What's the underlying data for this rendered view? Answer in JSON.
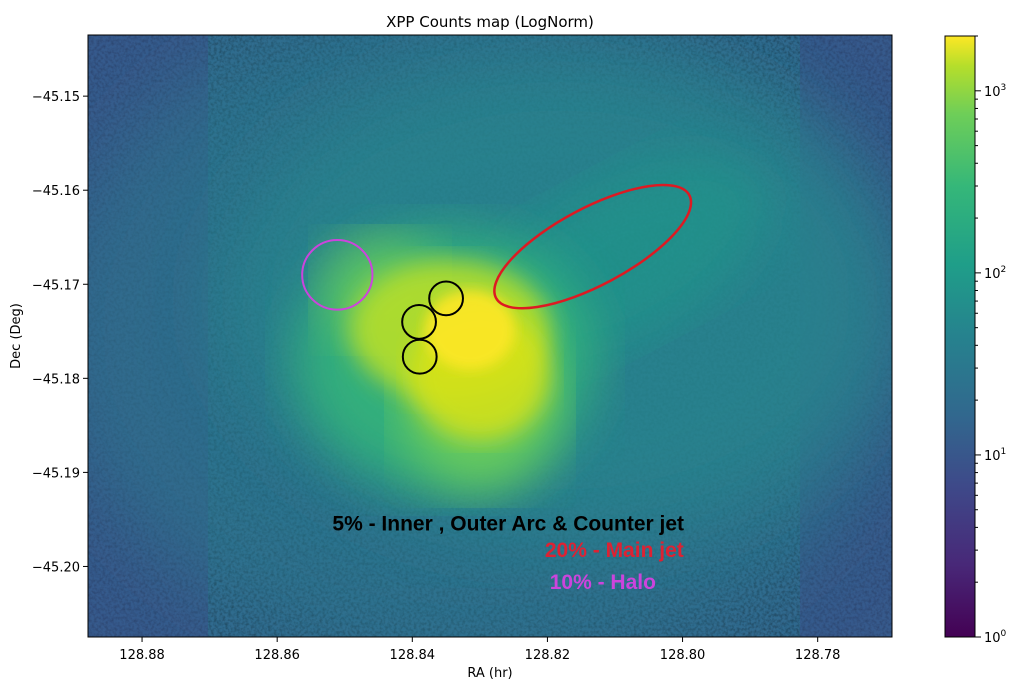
{
  "chart_data": {
    "type": "heatmap",
    "title": "XPP Counts map (LogNorm)",
    "xlabel": "RA (hr)",
    "ylabel": "Dec (Deg)",
    "xlim": [
      128.888,
      128.769
    ],
    "ylim": [
      -45.2075,
      -45.1435
    ],
    "x_ticks": [
      128.88,
      128.86,
      128.84,
      128.82,
      128.8,
      128.78
    ],
    "x_tick_labels": [
      "128.88",
      "128.86",
      "128.84",
      "128.82",
      "128.80",
      "128.78"
    ],
    "y_ticks": [
      -45.15,
      -45.16,
      -45.17,
      -45.18,
      -45.19,
      -45.2
    ],
    "y_tick_labels": [
      "−45.15",
      "−45.16",
      "−45.17",
      "−45.18",
      "−45.19",
      "−45.20"
    ],
    "colorbar": {
      "scale": "log",
      "range": [
        1,
        2000
      ],
      "colormap": "viridis",
      "ticks": [
        {
          "value": 1,
          "base": "10",
          "exp": "0"
        },
        {
          "value": 10,
          "base": "10",
          "exp": "1"
        },
        {
          "value": 100,
          "base": "10",
          "exp": "2"
        },
        {
          "value": 1000,
          "base": "10",
          "exp": "3"
        }
      ]
    },
    "regions": [
      {
        "name": "halo",
        "shape": "circle",
        "ra": 128.8511,
        "dec": -45.169,
        "r_ra": 0.0052,
        "r_dec": 0.0037,
        "color": "#cc44dd"
      },
      {
        "name": "outer-arc",
        "shape": "circle",
        "ra": 128.835,
        "dec": -45.1715,
        "r_ra": 0.0025,
        "r_dec": 0.0018,
        "color": "#000000"
      },
      {
        "name": "inner",
        "shape": "circle",
        "ra": 128.839,
        "dec": -45.174,
        "r_ra": 0.0025,
        "r_dec": 0.0018,
        "color": "#000000"
      },
      {
        "name": "counter-jet",
        "shape": "circle",
        "ra": 128.8389,
        "dec": -45.1777,
        "r_ra": 0.0025,
        "r_dec": 0.0018,
        "color": "#000000"
      },
      {
        "name": "main-jet",
        "shape": "ellipse",
        "ra": 128.8133,
        "dec": -45.166,
        "r_major": 0.0162,
        "r_minor": 0.0057,
        "angle": -28,
        "color": "#dd1a22"
      }
    ],
    "annotations": [
      {
        "text": "5% - Inner , Outer Arc & Counter jet",
        "color": "#000000",
        "ra": 128.8258,
        "dec": -45.1962
      },
      {
        "text": "20% - Main jet",
        "color": "#dd2233",
        "ra": 128.8101,
        "dec": -45.199
      },
      {
        "text": "10% - Halo",
        "color": "#cc44dd",
        "ra": 128.8118,
        "dec": -45.2024
      }
    ]
  }
}
